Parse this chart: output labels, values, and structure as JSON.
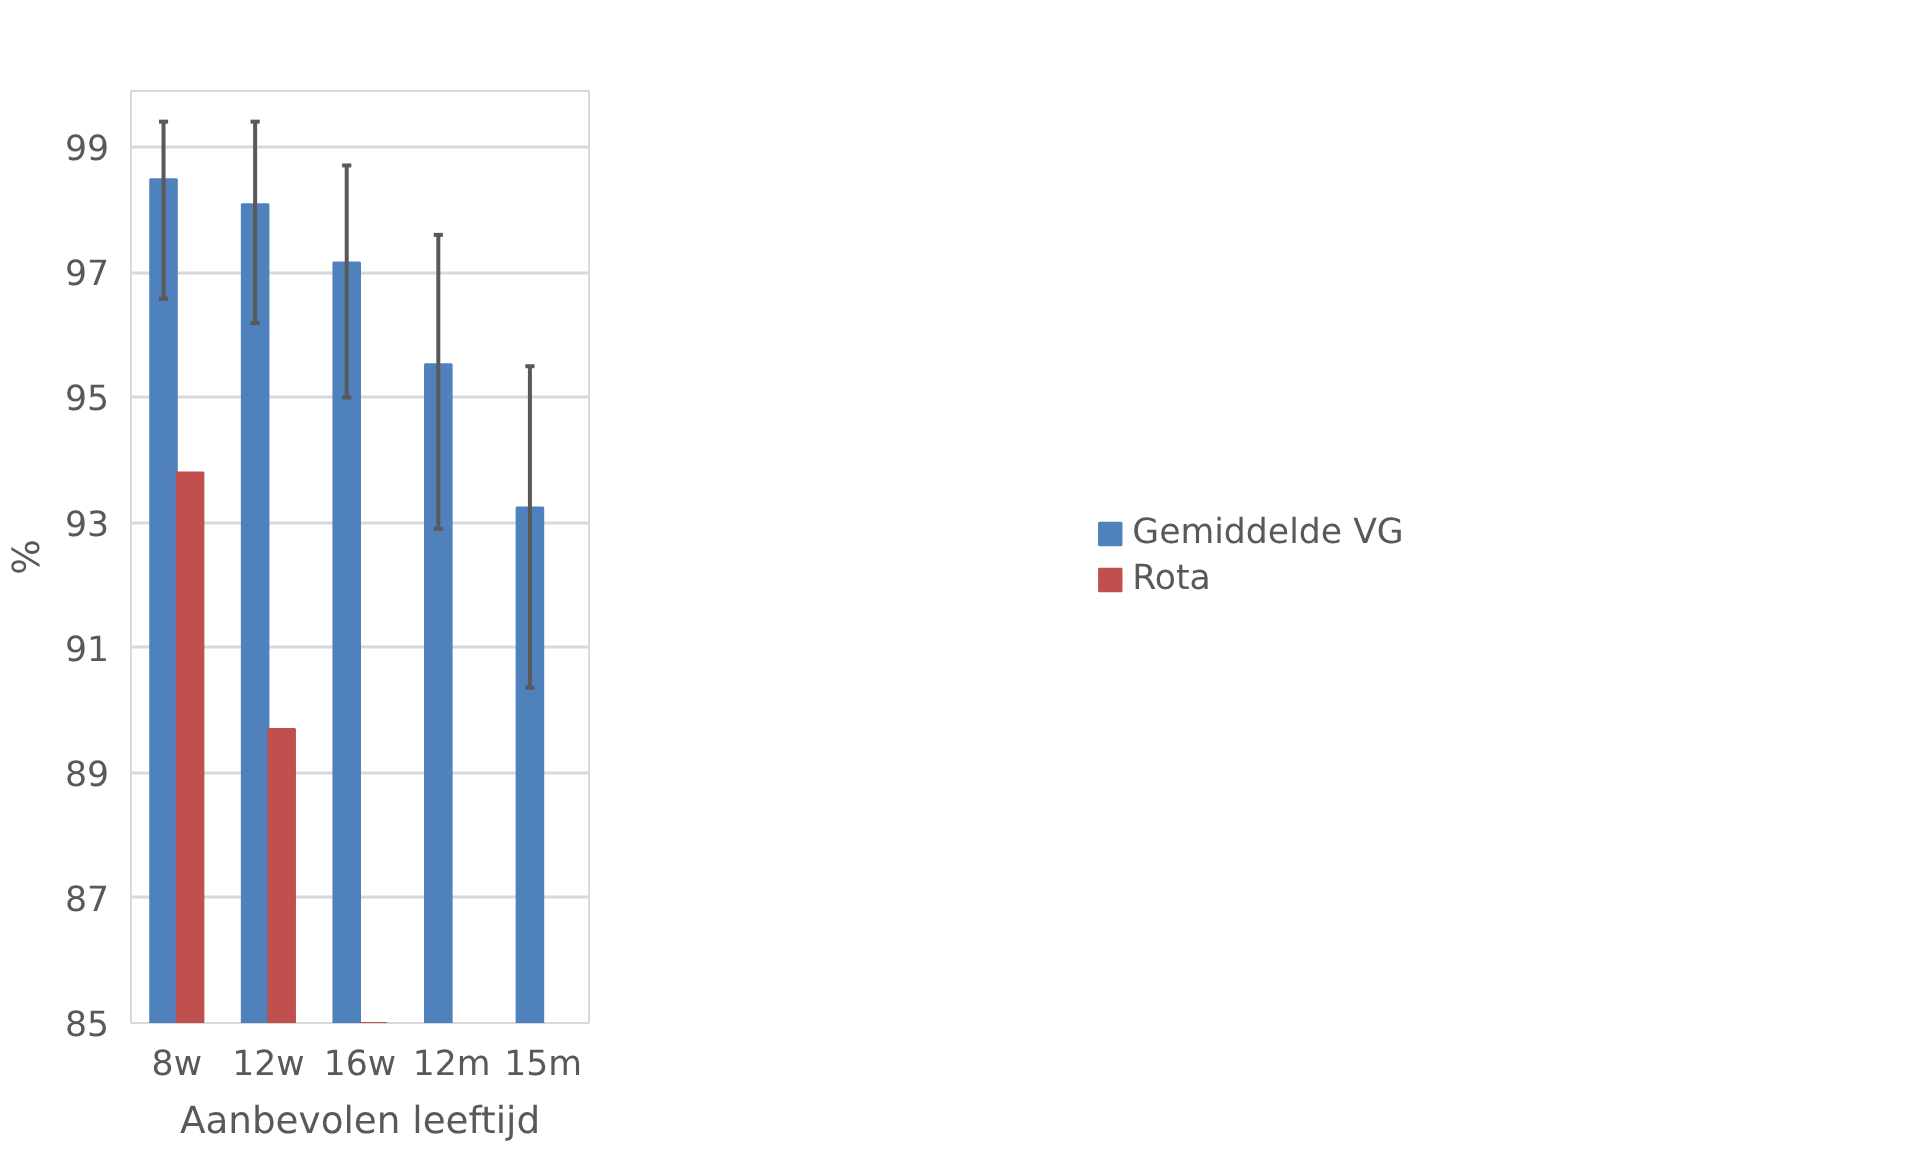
{
  "chart_data": {
    "type": "bar",
    "xlabel": "Aanbevolen leeftijd",
    "ylabel": "%",
    "categories": [
      "8w",
      "12w",
      "16w",
      "12m",
      "15m"
    ],
    "series": [
      {
        "name": "Gemiddelde VG",
        "color": "#4f81bd",
        "values": [
          98.49,
          98.09,
          97.16,
          95.53,
          93.24
        ],
        "errors": [
          [
            96.58,
            99.41
          ],
          [
            96.19,
            99.41
          ],
          [
            95.0,
            98.71
          ],
          [
            92.9,
            97.6
          ],
          [
            90.36,
            95.5
          ]
        ]
      },
      {
        "name": "Rota",
        "color": "#c0504d",
        "values": [
          93.8,
          89.7,
          85,
          null,
          null
        ]
      }
    ],
    "ylim": [
      85,
      99.9
    ],
    "yticks": [
      85,
      87,
      89,
      91,
      93,
      95,
      97,
      99
    ],
    "grid": "y",
    "legend": "right"
  }
}
